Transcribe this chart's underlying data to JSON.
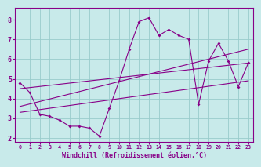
{
  "title": "",
  "xlabel": "Windchill (Refroidissement éolien,°C)",
  "ylabel": "",
  "x_data": [
    0,
    1,
    2,
    3,
    4,
    5,
    6,
    7,
    8,
    9,
    10,
    11,
    12,
    13,
    14,
    15,
    16,
    17,
    18,
    19,
    20,
    21,
    22,
    23
  ],
  "y_data": [
    4.8,
    4.3,
    3.2,
    3.1,
    2.9,
    2.6,
    2.6,
    2.5,
    2.1,
    3.5,
    4.9,
    6.5,
    7.9,
    8.1,
    7.2,
    7.5,
    7.2,
    7.0,
    3.7,
    5.9,
    6.8,
    5.9,
    4.6,
    5.8
  ],
  "line_color": "#880088",
  "background_color": "#c8eaea",
  "grid_color": "#99cccc",
  "ylim": [
    1.8,
    8.6
  ],
  "xlim": [
    -0.5,
    23.5
  ],
  "yticks": [
    2,
    3,
    4,
    5,
    6,
    7,
    8
  ],
  "xticks": [
    0,
    1,
    2,
    3,
    4,
    5,
    6,
    7,
    8,
    9,
    10,
    11,
    12,
    13,
    14,
    15,
    16,
    17,
    18,
    19,
    20,
    21,
    22,
    23
  ],
  "reg_line1_x": [
    0,
    23
  ],
  "reg_line1_y": [
    4.5,
    5.8
  ],
  "reg_line2_x": [
    0,
    23
  ],
  "reg_line2_y": [
    3.3,
    4.9
  ],
  "reg_line3_x": [
    0,
    23
  ],
  "reg_line3_y": [
    3.6,
    6.5
  ]
}
